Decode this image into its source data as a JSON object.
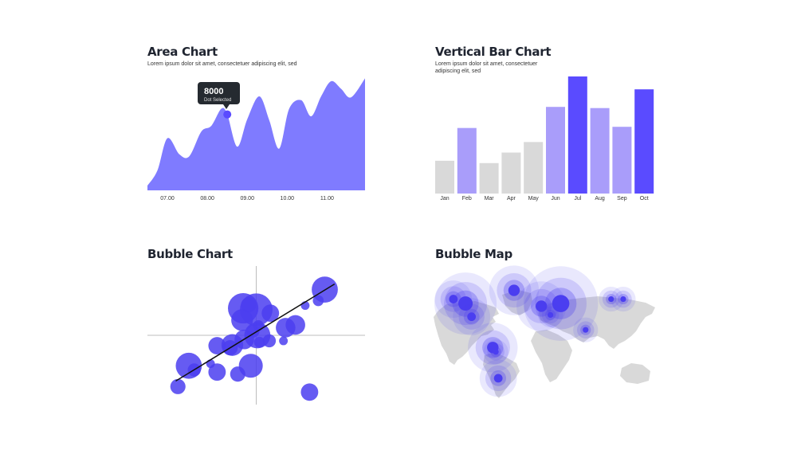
{
  "colors": {
    "accent": "#5a4bff",
    "area_fill": "#7f7bff",
    "bar_light": "#a99dfa",
    "bar_gray": "#d9d9d9",
    "tooltip_bg": "#252a30",
    "map_land": "#d9d9d9",
    "bubble": "#4b3ef0"
  },
  "area_chart": {
    "title": "Area Chart",
    "subtitle": "Lorem ipsum dolor sit amet, consectetuer adipiscing elit, sed",
    "tooltip_value": "8000",
    "tooltip_label": "Dot Selected",
    "chart_data": {
      "type": "area",
      "x_ticks": [
        "07.00",
        "08.00",
        "09.00",
        "10.00",
        "11.00"
      ],
      "x": [
        6.5,
        6.75,
        7.0,
        7.3,
        7.55,
        7.85,
        8.1,
        8.35,
        8.5,
        8.75,
        9.0,
        9.3,
        9.55,
        9.8,
        10.05,
        10.35,
        10.6,
        10.85,
        11.1,
        11.35,
        11.6,
        11.95
      ],
      "values": [
        500,
        2100,
        5500,
        3800,
        3600,
        6200,
        6800,
        8600,
        8000,
        4600,
        7500,
        9900,
        7400,
        4400,
        8600,
        9500,
        7800,
        9900,
        11500,
        10700,
        9800,
        11800
      ],
      "selected_index": 8,
      "ylim": [
        0,
        12000
      ],
      "grid": false
    }
  },
  "bar_chart": {
    "title": "Vertical Bar Chart",
    "subtitle_lines": [
      "Lorem ipsum dolor sit amet, consectetuer",
      "adipiscing elit, sed"
    ],
    "chart_data": {
      "type": "bar",
      "categories": [
        "Jan",
        "Feb",
        "Mar",
        "Apr",
        "May",
        "Jun",
        "Jul",
        "Aug",
        "Sep",
        "Oct"
      ],
      "values": [
        28,
        56,
        26,
        35,
        44,
        74,
        100,
        73,
        57,
        89
      ],
      "bar_colors": [
        "#d9d9d9",
        "#a99dfa",
        "#d9d9d9",
        "#d9d9d9",
        "#d9d9d9",
        "#a99dfa",
        "#5a4bff",
        "#a99dfa",
        "#a99dfa",
        "#5a4bff"
      ],
      "ylim": [
        0,
        100
      ],
      "grid": false
    }
  },
  "bubble_chart": {
    "title": "Bubble Chart",
    "chart_data": {
      "type": "scatter",
      "xlim": [
        -10,
        10
      ],
      "ylim": [
        -10,
        10
      ],
      "axes_through_origin": true,
      "trend_line": [
        [
          -7.4,
          -6.6
        ],
        [
          7.2,
          7.4
        ]
      ],
      "points": [
        {
          "x": 6.3,
          "y": 6.6,
          "r": 1.2
        },
        {
          "x": 5.7,
          "y": 5.0,
          "r": 0.5
        },
        {
          "x": 4.5,
          "y": 4.3,
          "r": 0.4
        },
        {
          "x": -1.2,
          "y": 3.9,
          "r": 1.4
        },
        {
          "x": 0.0,
          "y": 3.7,
          "r": 1.5
        },
        {
          "x": -0.7,
          "y": 4.4,
          "r": 0.7
        },
        {
          "x": 1.3,
          "y": 3.2,
          "r": 0.8
        },
        {
          "x": -1.3,
          "y": 2.2,
          "r": 1.0
        },
        {
          "x": 0.2,
          "y": 1.4,
          "r": 0.5
        },
        {
          "x": 2.7,
          "y": 1.1,
          "r": 0.9
        },
        {
          "x": 3.6,
          "y": 1.5,
          "r": 0.9
        },
        {
          "x": -0.3,
          "y": 0.6,
          "r": 0.6
        },
        {
          "x": 0.1,
          "y": 0.0,
          "r": 1.2
        },
        {
          "x": -1.1,
          "y": -0.6,
          "r": 0.9
        },
        {
          "x": 0.3,
          "y": -1.0,
          "r": 0.5
        },
        {
          "x": 1.2,
          "y": -0.8,
          "r": 0.6
        },
        {
          "x": 2.5,
          "y": -0.8,
          "r": 0.4
        },
        {
          "x": -2.2,
          "y": -1.4,
          "r": 1.0
        },
        {
          "x": -3.6,
          "y": -1.5,
          "r": 0.8
        },
        {
          "x": -2.4,
          "y": -1.8,
          "r": 0.7
        },
        {
          "x": -6.2,
          "y": -4.4,
          "r": 1.2
        },
        {
          "x": -5.7,
          "y": -5.0,
          "r": 0.6
        },
        {
          "x": -4.2,
          "y": -4.1,
          "r": 0.4
        },
        {
          "x": -3.6,
          "y": -5.3,
          "r": 0.8
        },
        {
          "x": -0.5,
          "y": -4.4,
          "r": 1.1
        },
        {
          "x": -1.7,
          "y": -5.6,
          "r": 0.7
        },
        {
          "x": -7.2,
          "y": -7.4,
          "r": 0.7
        },
        {
          "x": 4.9,
          "y": -8.2,
          "r": 0.8
        }
      ]
    }
  },
  "bubble_map": {
    "title": "Bubble Map",
    "bubbles": [
      {
        "lon": -140,
        "lat": 60,
        "size": 3
      },
      {
        "lon": -120,
        "lat": 55,
        "size": 5
      },
      {
        "lon": -110,
        "lat": 40,
        "size": 3
      },
      {
        "lon": -40,
        "lat": 70,
        "size": 4
      },
      {
        "lon": 5,
        "lat": 52,
        "size": 4
      },
      {
        "lon": 37,
        "lat": 55,
        "size": 6
      },
      {
        "lon": 20,
        "lat": 42,
        "size": 2
      },
      {
        "lon": 120,
        "lat": 60,
        "size": 2
      },
      {
        "lon": 140,
        "lat": 60,
        "size": 2
      },
      {
        "lon": 78,
        "lat": 25,
        "size": 2
      },
      {
        "lon": -75,
        "lat": 5,
        "size": 4
      },
      {
        "lon": -70,
        "lat": 0,
        "size": 2
      },
      {
        "lon": -66,
        "lat": -30,
        "size": 3
      }
    ]
  }
}
